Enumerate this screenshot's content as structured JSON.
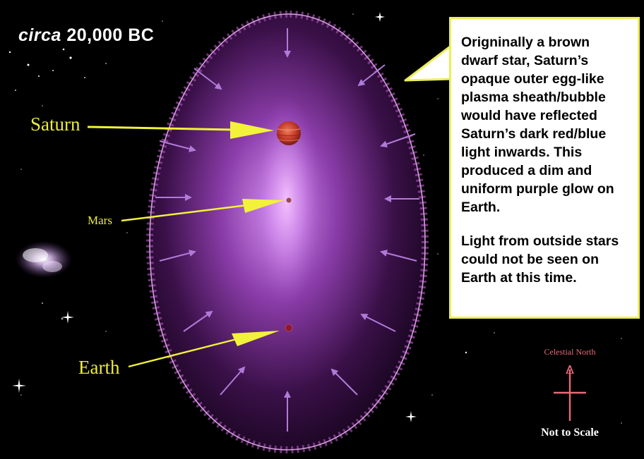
{
  "title": {
    "italic": "circa",
    "rest": " 20,000 BC"
  },
  "callout": {
    "paragraph1": "Origninally a brown dwarf star, Saturn’s opaque outer egg-like plasma sheath/bubble would have reflected Saturn’s dark red/blue light inwards. This produced a dim and uniform purple glow on Earth.",
    "paragraph2": "Light from outside stars could not be seen on Earth at this time."
  },
  "labels": {
    "saturn": "Saturn",
    "mars": "Mars",
    "earth": "Earth"
  },
  "compass": {
    "label": "Celestial North"
  },
  "scale_note": "Not to Scale",
  "colors": {
    "background": "#000000",
    "sheath_edge": "#c77ccf",
    "glow_core": "#f0b0ff",
    "label_yellow": "#ecec3a",
    "pointer_yellow": "#f2f23a",
    "arrow_violet": "#b07ad8",
    "callout_border": "#ecef55",
    "north_pink": "#e86a78",
    "saturn_red": "#c23a28"
  }
}
